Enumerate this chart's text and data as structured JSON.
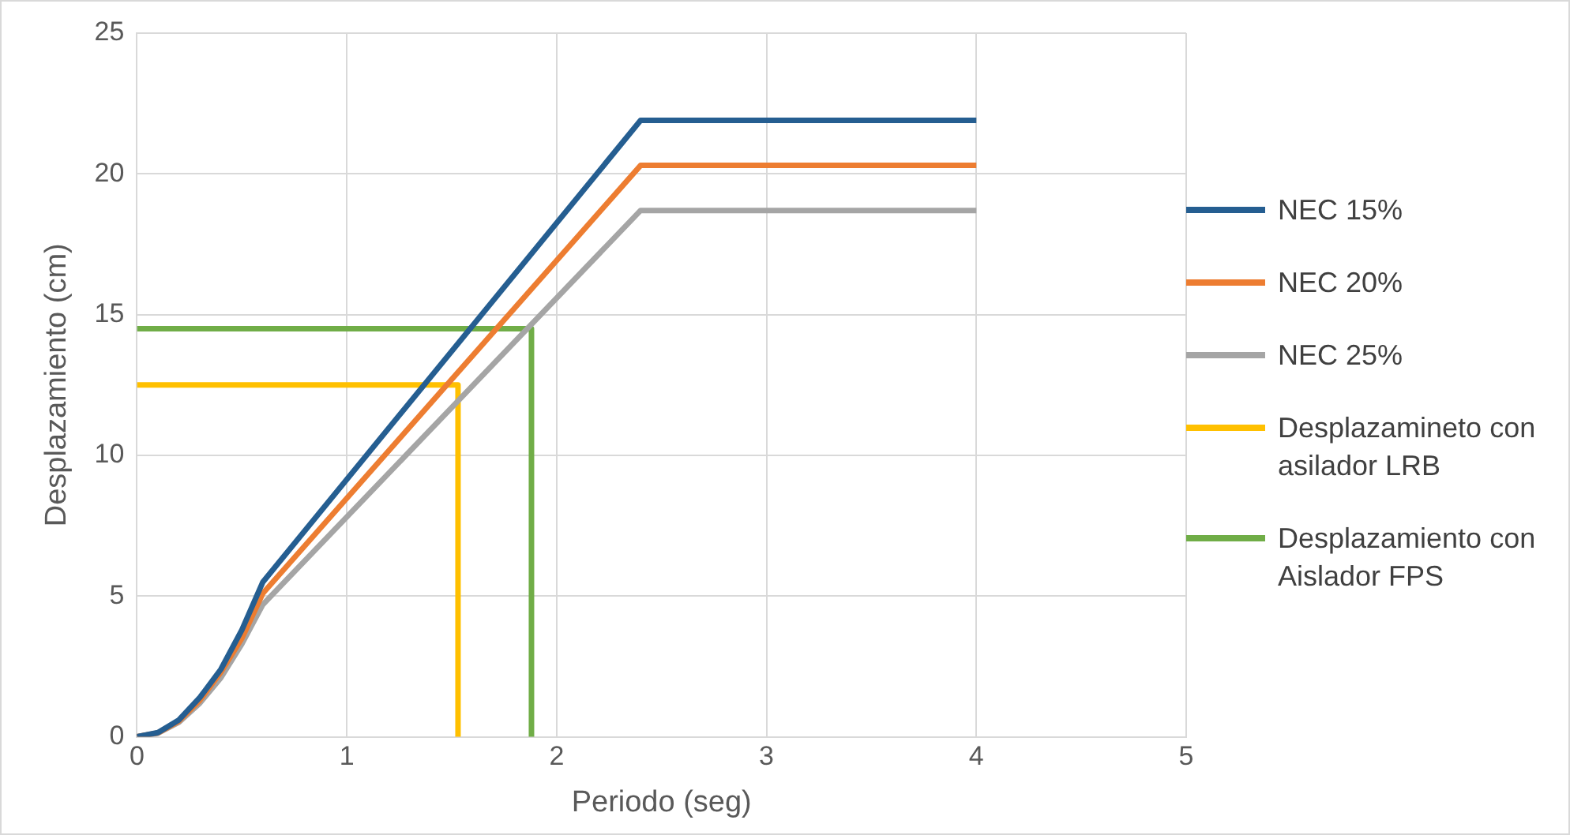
{
  "chart_data": {
    "type": "line",
    "xlabel": "Periodo (seg)",
    "ylabel": "Desplazamiento (cm)",
    "xlim": [
      0,
      5
    ],
    "xticks": [
      0,
      1,
      2,
      3,
      4,
      5
    ],
    "ylim": [
      0,
      25
    ],
    "yticks": [
      0,
      5,
      10,
      15,
      20,
      25
    ],
    "grid": true,
    "legend": "right",
    "marker": "none",
    "line_style": "solid",
    "series": [
      {
        "name": "NEC 15%",
        "color": "#255e91",
        "x": [
          0,
          0.1,
          0.2,
          0.3,
          0.4,
          0.5,
          0.6,
          2.4,
          4
        ],
        "values": [
          0,
          0.15,
          0.6,
          1.4,
          2.4,
          3.8,
          5.5,
          21.9,
          21.9
        ]
      },
      {
        "name": "NEC 20%",
        "color": "#ed7d31",
        "x": [
          0,
          0.1,
          0.2,
          0.3,
          0.4,
          0.5,
          0.6,
          2.4,
          4
        ],
        "values": [
          0,
          0.14,
          0.56,
          1.3,
          2.3,
          3.5,
          5.1,
          20.3,
          20.3
        ]
      },
      {
        "name": "NEC 25%",
        "color": "#a5a5a5",
        "x": [
          0,
          0.1,
          0.2,
          0.3,
          0.4,
          0.5,
          0.6,
          2.4,
          4
        ],
        "values": [
          0,
          0.13,
          0.52,
          1.2,
          2.1,
          3.3,
          4.7,
          18.7,
          18.7
        ]
      },
      {
        "name": "Desplazamineto con asilador LRB",
        "color": "#ffc000",
        "x": [
          0,
          1.53,
          1.53
        ],
        "values": [
          12.5,
          12.5,
          0
        ]
      },
      {
        "name": "Desplazamiento con Aislador FPS",
        "color": "#70ad47",
        "x": [
          0,
          1.88,
          1.88
        ],
        "values": [
          14.5,
          14.5,
          0
        ]
      }
    ]
  }
}
